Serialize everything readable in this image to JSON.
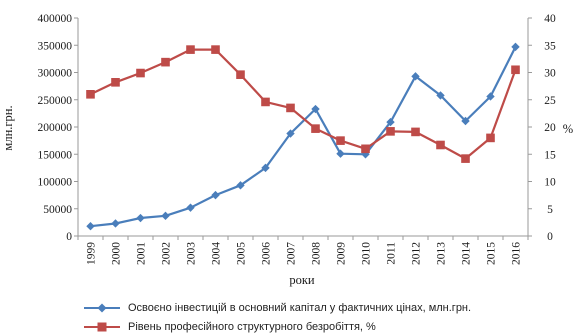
{
  "chart_data": {
    "type": "line",
    "categories": [
      "1999",
      "2000",
      "2001",
      "2002",
      "2003",
      "2004",
      "2005",
      "2006",
      "2007",
      "2008",
      "2009",
      "2010",
      "2011",
      "2012",
      "2013",
      "2014",
      "2015",
      "2016"
    ],
    "xlabel": "роки",
    "ylabel": "млн.грн.",
    "y2label": "%",
    "ylim": [
      0,
      400000
    ],
    "y2lim": [
      0,
      40
    ],
    "yticks": [
      "0",
      "50000",
      "100000",
      "150000",
      "200000",
      "250000",
      "300000",
      "350000",
      "400000"
    ],
    "y2ticks": [
      "0",
      "5",
      "10",
      "15",
      "20",
      "25",
      "30",
      "35",
      "40"
    ],
    "grid": false,
    "legend_position": "bottom",
    "series": [
      {
        "name": "Освоєно інвестицій в основний капітал у фактичних цінах, млн.грн.",
        "axis": "left",
        "color": "#4a7ebb",
        "marker": "diamond",
        "values": [
          18000,
          23000,
          33000,
          37000,
          52000,
          75000,
          93000,
          125000,
          188000,
          233000,
          151000,
          150000,
          209000,
          293000,
          258000,
          211000,
          256000,
          347000
        ]
      },
      {
        "name": "Рівень професійного структурного безробіття, %",
        "axis": "right",
        "color": "#be4b48",
        "marker": "square",
        "values": [
          26,
          28.2,
          29.9,
          31.9,
          34.2,
          34.2,
          29.6,
          24.6,
          23.5,
          19.7,
          17.5,
          16,
          19.2,
          19.1,
          16.7,
          14.2,
          18,
          30.5
        ]
      }
    ]
  }
}
